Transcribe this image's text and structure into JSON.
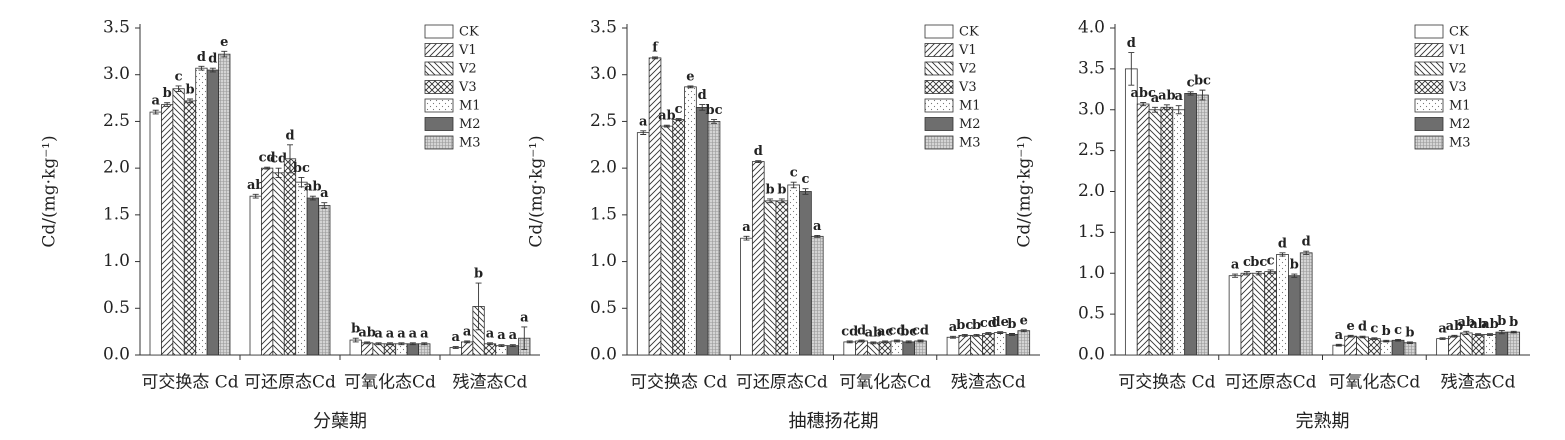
{
  "chart_data": [
    {
      "type": "bar",
      "x_label": "分蘖期",
      "y_label": "Cd/(mg·kg⁻¹)",
      "legend": "upper right",
      "categories": [
        "可交换态 Cd",
        "可还原态Cd",
        "可氧化态Cd",
        "残渣态Cd"
      ],
      "ylim": [
        0,
        3.5
      ],
      "yticks": [
        {
          "value": 0,
          "label": "0.0"
        },
        0.5,
        {
          "value": 1,
          "label": "1.0"
        },
        1.5,
        {
          "value": 2,
          "label": "2.0"
        },
        2.5,
        {
          "value": 3,
          "label": "3.0"
        },
        3.5
      ],
      "series": [
        {
          "name": "CK",
          "color": "#ffffff",
          "pattern": "none",
          "values": [
            2.6,
            1.7,
            0.16,
            0.08
          ],
          "errors": [
            0.02,
            0.02,
            0.02,
            0.01
          ],
          "letters": [
            "a",
            "ab",
            "b",
            "a"
          ]
        },
        {
          "name": "V1",
          "color": "#ffffff",
          "pattern": "hatch-right",
          "values": [
            2.68,
            2.0,
            0.13,
            0.14
          ],
          "errors": [
            0.02,
            0.01,
            0.01,
            0.01
          ],
          "letters": [
            "b",
            "cd",
            "ab",
            "a"
          ]
        },
        {
          "name": "V2",
          "color": "#ffffff",
          "pattern": "hatch-left",
          "values": [
            2.85,
            1.95,
            0.12,
            0.52
          ],
          "errors": [
            0.03,
            0.05,
            0.01,
            0.25
          ],
          "letters": [
            "c",
            "cd",
            "a",
            "b"
          ]
        },
        {
          "name": "V3",
          "color": "#ffffff",
          "pattern": "cross",
          "values": [
            2.72,
            2.1,
            0.12,
            0.12
          ],
          "errors": [
            0.02,
            0.15,
            0.01,
            0.01
          ],
          "letters": [
            "b",
            "d",
            "a",
            "a"
          ]
        },
        {
          "name": "M1",
          "color": "#ffffff",
          "pattern": "dots",
          "values": [
            3.07,
            1.85,
            0.12,
            0.1
          ],
          "errors": [
            0.02,
            0.05,
            0.01,
            0.01
          ],
          "letters": [
            "d",
            "bc",
            "a",
            "a"
          ]
        },
        {
          "name": "M2",
          "color": "#6e6e6e",
          "pattern": "solid",
          "values": [
            3.05,
            1.68,
            0.12,
            0.1
          ],
          "errors": [
            0.02,
            0.02,
            0.01,
            0.01
          ],
          "letters": [
            "d",
            "ab",
            "a",
            "a"
          ]
        },
        {
          "name": "M3",
          "color": "#d4d4d4",
          "pattern": "fine-cross",
          "values": [
            3.22,
            1.6,
            0.12,
            0.18
          ],
          "errors": [
            0.03,
            0.03,
            0.01,
            0.12
          ],
          "letters": [
            "e",
            "a",
            "a",
            "a"
          ]
        }
      ]
    },
    {
      "type": "bar",
      "x_label": "抽穗扬花期",
      "y_label": "Cd/(mg·kg⁻¹)",
      "legend": "upper right",
      "categories": [
        "可交换态 Cd",
        "可还原态Cd",
        "可氧化态Cd",
        "残渣态Cd"
      ],
      "ylim": [
        0,
        3.5
      ],
      "yticks": [
        {
          "value": 0,
          "label": "0.0"
        },
        0.5,
        {
          "value": 1,
          "label": "1.0"
        },
        1.5,
        {
          "value": 2,
          "label": "2.0"
        },
        2.5,
        {
          "value": 3,
          "label": "3.0"
        },
        3.5
      ],
      "series": [
        {
          "name": "CK",
          "color": "#ffffff",
          "pattern": "none",
          "values": [
            2.38,
            1.25,
            0.14,
            0.19
          ],
          "errors": [
            0.02,
            0.02,
            0.01,
            0.01
          ],
          "letters": [
            "a",
            "a",
            "cd",
            "a"
          ]
        },
        {
          "name": "V1",
          "color": "#ffffff",
          "pattern": "hatch-right",
          "values": [
            3.18,
            2.07,
            0.15,
            0.21
          ],
          "errors": [
            0.01,
            0.01,
            0.01,
            0.01
          ],
          "letters": [
            "f",
            "d",
            "d",
            "bc"
          ]
        },
        {
          "name": "V2",
          "color": "#ffffff",
          "pattern": "hatch-left",
          "values": [
            2.45,
            1.65,
            0.13,
            0.21
          ],
          "errors": [
            0.01,
            0.02,
            0.01,
            0.01
          ],
          "letters": [
            "ab",
            "b",
            "ab",
            "b"
          ]
        },
        {
          "name": "V3",
          "color": "#ffffff",
          "pattern": "cross",
          "values": [
            2.52,
            1.65,
            0.14,
            0.23
          ],
          "errors": [
            0.01,
            0.02,
            0.01,
            0.01
          ],
          "letters": [
            "c",
            "b",
            "ac",
            "cd"
          ]
        },
        {
          "name": "M1",
          "color": "#ffffff",
          "pattern": "dots",
          "values": [
            2.87,
            1.82,
            0.15,
            0.24
          ],
          "errors": [
            0.01,
            0.03,
            0.01,
            0.01
          ],
          "letters": [
            "e",
            "c",
            "cd",
            "de"
          ]
        },
        {
          "name": "M2",
          "color": "#6e6e6e",
          "pattern": "solid",
          "values": [
            2.65,
            1.75,
            0.14,
            0.22
          ],
          "errors": [
            0.03,
            0.03,
            0.01,
            0.01
          ],
          "letters": [
            "d",
            "c",
            "bc",
            "b"
          ]
        },
        {
          "name": "M3",
          "color": "#d4d4d4",
          "pattern": "fine-cross",
          "values": [
            2.5,
            1.27,
            0.15,
            0.26
          ],
          "errors": [
            0.02,
            0.01,
            0.01,
            0.01
          ],
          "letters": [
            "bc",
            "a",
            "cd",
            "e"
          ]
        }
      ]
    },
    {
      "type": "bar",
      "x_label": "完熟期",
      "y_label": "Cd/(mg·kg⁻¹)",
      "legend": "upper right",
      "categories": [
        "可交换态 Cd",
        "可还原态Cd",
        "可氧化态Cd",
        "残渣态Cd"
      ],
      "ylim": [
        0,
        4
      ],
      "yticks": [
        {
          "value": 0,
          "label": "0.0"
        },
        0.5,
        {
          "value": 1,
          "label": "1.0"
        },
        1.5,
        {
          "value": 2,
          "label": "2.0"
        },
        2.5,
        {
          "value": 3,
          "label": "3.0"
        },
        3.5,
        {
          "value": 4,
          "label": "4.0"
        }
      ],
      "series": [
        {
          "name": "CK",
          "color": "#ffffff",
          "pattern": "none",
          "values": [
            3.5,
            0.97,
            0.12,
            0.2
          ],
          "errors": [
            0.2,
            0.02,
            0.01,
            0.01
          ],
          "letters": [
            "d",
            "a",
            "a",
            "a"
          ]
        },
        {
          "name": "V1",
          "color": "#ffffff",
          "pattern": "hatch-right",
          "values": [
            3.07,
            1.0,
            0.23,
            0.23
          ],
          "errors": [
            0.02,
            0.02,
            0.01,
            0.01
          ],
          "letters": [
            "abc",
            "c",
            "e",
            "ab"
          ]
        },
        {
          "name": "V2",
          "color": "#ffffff",
          "pattern": "hatch-left",
          "values": [
            3.0,
            1.0,
            0.22,
            0.27
          ],
          "errors": [
            0.03,
            0.02,
            0.01,
            0.02
          ],
          "letters": [
            "a",
            "bc",
            "d",
            "ab"
          ]
        },
        {
          "name": "V3",
          "color": "#ffffff",
          "pattern": "cross",
          "values": [
            3.03,
            1.02,
            0.2,
            0.25
          ],
          "errors": [
            0.03,
            0.02,
            0.01,
            0.01
          ],
          "letters": [
            "ab",
            "c",
            "c",
            "ab"
          ]
        },
        {
          "name": "M1",
          "color": "#ffffff",
          "pattern": "dots",
          "values": [
            3.0,
            1.23,
            0.17,
            0.25
          ],
          "errors": [
            0.05,
            0.02,
            0.01,
            0.01
          ],
          "letters": [
            "a",
            "d",
            "b",
            "ab"
          ]
        },
        {
          "name": "M2",
          "color": "#6e6e6e",
          "pattern": "solid",
          "values": [
            3.2,
            0.97,
            0.18,
            0.28
          ],
          "errors": [
            0.02,
            0.02,
            0.01,
            0.02
          ],
          "letters": [
            "c",
            "b",
            "c",
            "b"
          ]
        },
        {
          "name": "M3",
          "color": "#d4d4d4",
          "pattern": "fine-cross",
          "values": [
            3.18,
            1.25,
            0.15,
            0.28
          ],
          "errors": [
            0.06,
            0.02,
            0.01,
            0.01
          ],
          "letters": [
            "bc",
            "d",
            "b",
            "b"
          ]
        }
      ]
    }
  ]
}
